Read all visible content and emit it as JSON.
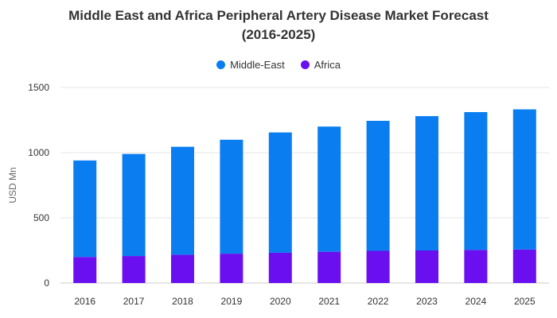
{
  "chart_data": {
    "type": "bar",
    "stacked": true,
    "title_line1": "Middle East and Africa Peripheral Artery Disease Market Forecast",
    "title_line2": "(2016-2025)",
    "xlabel": "",
    "ylabel": "USD Mn",
    "ylim": [
      0,
      1500
    ],
    "yticks": [
      "0",
      "500",
      "1000",
      "1500"
    ],
    "grid": true,
    "legend_position": "top-center",
    "categories": [
      "2016",
      "2017",
      "2018",
      "2019",
      "2020",
      "2021",
      "2022",
      "2023",
      "2024",
      "2025"
    ],
    "series": [
      {
        "name": "Africa",
        "color": "#6a0ff0",
        "values": [
          200,
          207,
          217,
          225,
          232,
          240,
          247,
          250,
          254,
          257
        ]
      },
      {
        "name": "Middle-East",
        "color": "#0a7ef0",
        "values": [
          740,
          783,
          828,
          874,
          923,
          960,
          997,
          1030,
          1057,
          1075
        ]
      }
    ],
    "legend_order": [
      "Middle-East",
      "Africa"
    ]
  }
}
